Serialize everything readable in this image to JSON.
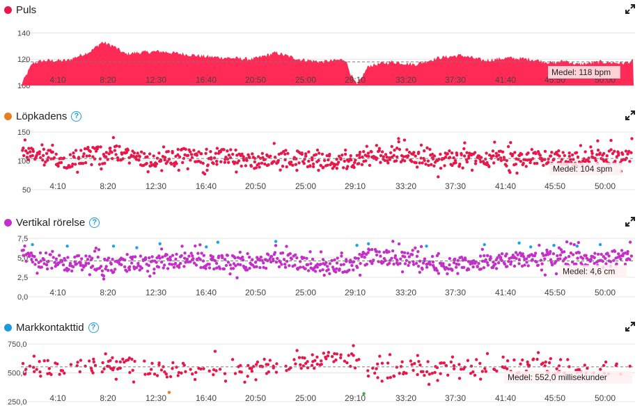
{
  "panels": [
    {
      "title": "Puls",
      "dot_color": "#e8174a",
      "help": false,
      "avg_label": "Medel: 118 bpm",
      "yticks": [
        "140",
        "120",
        "100"
      ]
    },
    {
      "title": "Löpkadens",
      "dot_color": "#e67e22",
      "help": true,
      "avg_label": "Medel: 104 spm",
      "yticks": [
        "150",
        "100",
        "50"
      ]
    },
    {
      "title": "Vertikal rörelse",
      "dot_color": "#c42fc8",
      "help": true,
      "avg_label": "Medel: 4,6 cm",
      "yticks": [
        "7,5",
        "5,0",
        "2,5",
        "0,0"
      ]
    },
    {
      "title": "Markkontakttid",
      "dot_color": "#1a9be0",
      "help": true,
      "avg_label": "Medel: 552,0 millisekunder",
      "yticks": [
        "750,0",
        "500,0",
        "250,0"
      ]
    }
  ],
  "chart_data": [
    {
      "type": "area",
      "title": "Puls",
      "x_ticks": [
        "4:10",
        "8:20",
        "12:30",
        "16:40",
        "20:50",
        "25:00",
        "29:10",
        "33:20",
        "37:30",
        "41:40",
        "45:50",
        "50:00"
      ],
      "ylim": [
        100,
        145
      ],
      "average": 118,
      "color": "#ff2a55",
      "series": [
        {
          "x_min": [
            0,
            1,
            2,
            4,
            6,
            7,
            8,
            9,
            10,
            12,
            14,
            16,
            18,
            20,
            22,
            24,
            26,
            27,
            28,
            28.5,
            29,
            30,
            32,
            34,
            36,
            38,
            40,
            42,
            44,
            46,
            47,
            48,
            50,
            52,
            53
          ],
          "values": [
            100,
            117,
            119,
            119,
            126,
            133,
            130,
            124,
            125,
            126,
            124,
            122,
            121,
            120,
            125,
            120,
            118,
            119,
            120,
            108,
            100,
            115,
            118,
            116,
            121,
            123,
            119,
            121,
            120,
            117,
            119,
            116,
            118,
            117,
            119
          ]
        }
      ]
    },
    {
      "type": "scatter",
      "title": "Löpkadens",
      "x_ticks": [
        "4:10",
        "8:20",
        "12:30",
        "16:40",
        "20:50",
        "25:00",
        "29:10",
        "33:20",
        "37:30",
        "41:40",
        "45:50",
        "50:00"
      ],
      "ylim": [
        50,
        150
      ],
      "average": 104,
      "series": [
        {
          "name": "Löpkadens",
          "color": "#e8174a",
          "x_min": [
            0.5,
            2,
            4,
            6,
            8,
            10,
            12,
            14,
            16,
            18,
            20,
            22,
            24,
            26,
            28,
            30,
            32,
            34,
            36,
            38,
            40,
            42,
            44,
            46,
            48,
            50,
            52
          ],
          "values": [
            110,
            108,
            100,
            112,
            115,
            106,
            101,
            110,
            104,
            108,
            98,
            103,
            105,
            101,
            98,
            107,
            112,
            108,
            100,
            102,
            106,
            104,
            101,
            108,
            102,
            107,
            110
          ]
        }
      ]
    },
    {
      "type": "scatter",
      "title": "Vertikal rörelse",
      "x_ticks": [
        "4:10",
        "8:20",
        "12:30",
        "16:40",
        "20:50",
        "25:00",
        "29:10",
        "33:20",
        "37:30",
        "41:40",
        "45:50",
        "50:00"
      ],
      "ylim": [
        0,
        7.5
      ],
      "average": 4.6,
      "series": [
        {
          "name": "Vertikal rörelse",
          "color": "#c42fc8",
          "x_min": [
            0.5,
            2,
            4,
            6,
            8,
            10,
            12,
            14,
            16,
            18,
            20,
            22,
            24,
            26,
            28,
            30,
            32,
            34,
            36,
            38,
            40,
            42,
            44,
            46,
            48,
            50,
            52
          ],
          "values": [
            5.3,
            4.6,
            4.2,
            4.5,
            3.9,
            4.3,
            4.4,
            4.7,
            4.6,
            4.4,
            4.2,
            4.8,
            4.5,
            4.0,
            3.8,
            5.2,
            5.0,
            4.6,
            4.3,
            4.2,
            4.5,
            4.6,
            4.9,
            4.8,
            5.0,
            4.6,
            5.1
          ]
        },
        {
          "name": "",
          "color": "#1aa3e8",
          "x_min": [
            1,
            4,
            8,
            10,
            12,
            16,
            17,
            22,
            29,
            30,
            35,
            40,
            43,
            44,
            46,
            48,
            50
          ],
          "values": [
            6.7,
            6.5,
            6.5,
            6.3,
            6.8,
            6.4,
            7.0,
            7.1,
            6.6,
            6.8,
            6.5,
            6.7,
            6.9,
            6.4,
            6.6,
            6.5,
            6.7
          ]
        }
      ]
    },
    {
      "type": "scatter",
      "title": "Markkontakttid",
      "x_ticks": [
        "4:10",
        "8:20",
        "12:30",
        "16:40",
        "20:50",
        "25:00",
        "29:10",
        "33:20",
        "37:30",
        "41:40",
        "45:50",
        "50:00"
      ],
      "ylim": [
        250,
        750
      ],
      "average": 552.0,
      "series": [
        {
          "name": "Markkontakttid",
          "color": "#e8174a",
          "x_min": [
            0.5,
            2,
            4,
            6,
            8,
            10,
            12,
            14,
            16,
            18,
            22,
            24,
            26,
            28,
            30,
            32,
            34,
            36,
            38,
            40,
            42,
            44,
            46,
            48,
            50,
            52
          ],
          "values": [
            540,
            555,
            548,
            560,
            580,
            560,
            520,
            530,
            545,
            555,
            560,
            575,
            610,
            640,
            520,
            530,
            545,
            535,
            550,
            560,
            540,
            575,
            555,
            545,
            550,
            540
          ]
        },
        {
          "name": "",
          "color": "#e67e22",
          "x_min": [
            12.8
          ],
          "values": [
            330
          ]
        },
        {
          "name": "",
          "color": "#3cb043",
          "x_min": [
            29.6
          ],
          "values": [
            320
          ]
        }
      ]
    }
  ]
}
